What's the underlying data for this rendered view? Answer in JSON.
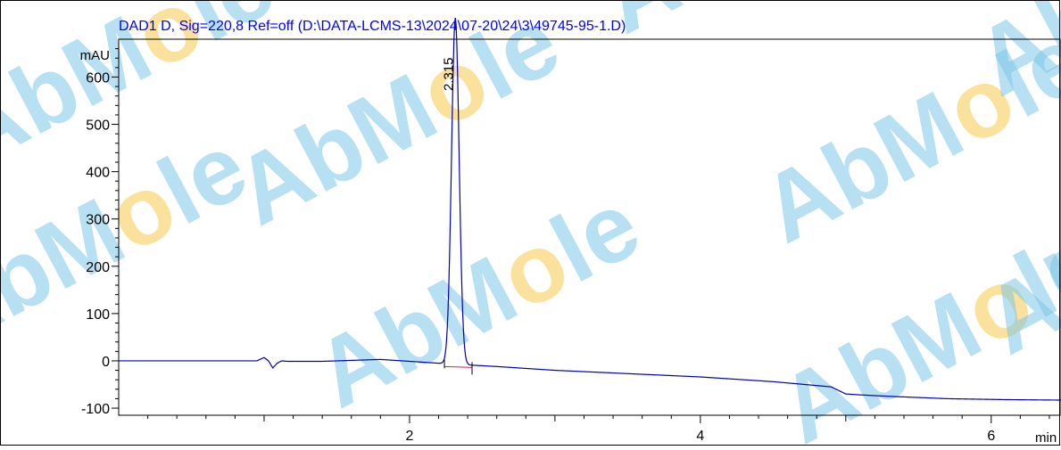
{
  "chart_data": {
    "type": "line",
    "title": "DAD1 D, Sig=220,8 Ref=off (D:\\DATA-LCMS-13\\2024\\07-20\\24\\3\\49745-95-1.D)",
    "ylabel": "mAU",
    "xlabel": "min",
    "xlim": [
      0.0,
      6.48
    ],
    "ylim": [
      -115,
      680
    ],
    "y_ticks": [
      -100,
      0,
      100,
      200,
      300,
      400,
      500,
      600
    ],
    "x_ticks": [
      2,
      4,
      6
    ],
    "grid": false,
    "legend": "none",
    "trace_color": "#0000b4",
    "title_color": "#0000ff",
    "series": [
      {
        "x": [
          0.0,
          0.4,
          0.95,
          1.0,
          1.03,
          1.06,
          1.09,
          1.12,
          1.16,
          1.4,
          1.8,
          2.1,
          2.3,
          2.6,
          3.0,
          3.5,
          4.0,
          4.5,
          4.9,
          5.0,
          5.1,
          5.3,
          5.7,
          6.1,
          6.48
        ],
        "y": [
          0,
          0,
          0,
          7,
          0,
          -15,
          -5,
          0,
          -1,
          -1,
          3,
          -3,
          -7,
          -12,
          -20,
          -27,
          -34,
          -44,
          -55,
          -70,
          -72,
          -75,
          -80,
          -82,
          -83
        ]
      }
    ],
    "peaks": [
      {
        "label": "2.315",
        "rt": 2.315,
        "height": 725,
        "start": 2.24,
        "end": 2.43,
        "baseline_start": -12,
        "baseline_end": -14
      }
    ],
    "watermark": {
      "text": "AbMole",
      "color": "#7cc7e8",
      "accent_color": "#f5c84a"
    }
  }
}
